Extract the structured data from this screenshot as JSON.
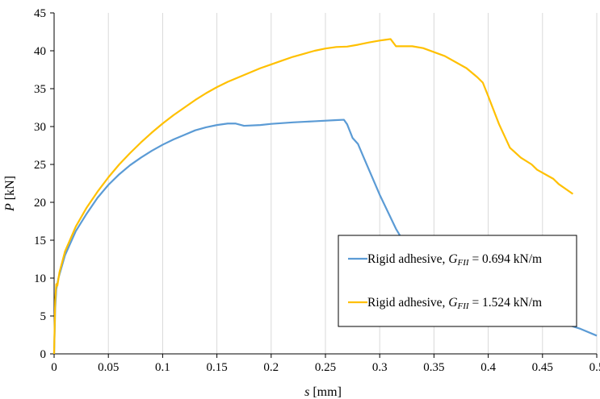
{
  "chart_data": {
    "type": "line",
    "xlabel_var": "s",
    "xlabel_unit": " [mm]",
    "ylabel_var": "P",
    "ylabel_unit": " [kN]",
    "xlim": [
      0,
      0.5
    ],
    "ylim": [
      0,
      45
    ],
    "x_ticks": [
      "0",
      "0.05",
      "0.1",
      "0.15",
      "0.2",
      "0.25",
      "0.3",
      "0.35",
      "0.4",
      "0.45",
      "0.5"
    ],
    "y_ticks": [
      "0",
      "5",
      "10",
      "15",
      "20",
      "25",
      "30",
      "35",
      "40",
      "45"
    ],
    "grid": "vertical",
    "legend_position": "right",
    "legend_prefix": "Rigid adhesive, ",
    "legend_symbol_base": "G",
    "legend_symbol_sub": "FII",
    "series": [
      {
        "legend_value": " = 0.694 kN/m",
        "color": "#5b9bd5",
        "points": [
          [
            0,
            0
          ],
          [
            0.001,
            6
          ],
          [
            0.002,
            8.5
          ],
          [
            0.004,
            10
          ],
          [
            0.01,
            13
          ],
          [
            0.02,
            16.2
          ],
          [
            0.03,
            18.5
          ],
          [
            0.04,
            20.6
          ],
          [
            0.05,
            22.3
          ],
          [
            0.06,
            23.7
          ],
          [
            0.07,
            24.9
          ],
          [
            0.08,
            25.9
          ],
          [
            0.09,
            26.8
          ],
          [
            0.1,
            27.6
          ],
          [
            0.11,
            28.3
          ],
          [
            0.12,
            28.9
          ],
          [
            0.13,
            29.5
          ],
          [
            0.14,
            29.9
          ],
          [
            0.15,
            30.2
          ],
          [
            0.16,
            30.4
          ],
          [
            0.167,
            30.4
          ],
          [
            0.175,
            30.1
          ],
          [
            0.19,
            30.2
          ],
          [
            0.2,
            30.35
          ],
          [
            0.22,
            30.55
          ],
          [
            0.24,
            30.7
          ],
          [
            0.26,
            30.85
          ],
          [
            0.267,
            30.9
          ],
          [
            0.27,
            30.3
          ],
          [
            0.275,
            28.5
          ],
          [
            0.28,
            27.7
          ],
          [
            0.285,
            26.0
          ],
          [
            0.3,
            21.0
          ],
          [
            0.315,
            16.5
          ],
          [
            0.32,
            15.3
          ],
          [
            0.33,
            12.5
          ],
          [
            0.36,
            10.0
          ],
          [
            0.4,
            7.0
          ],
          [
            0.42,
            5.5
          ],
          [
            0.45,
            4.6
          ],
          [
            0.47,
            4.0
          ],
          [
            0.485,
            3.3
          ],
          [
            0.5,
            2.4
          ]
        ]
      },
      {
        "legend_value": " = 1.524 kN/m",
        "color": "#ffc000",
        "points": [
          [
            0,
            0
          ],
          [
            0.001,
            7
          ],
          [
            0.002,
            9.2
          ],
          [
            0.003,
            9.0
          ],
          [
            0.005,
            10.8
          ],
          [
            0.01,
            13.5
          ],
          [
            0.02,
            16.8
          ],
          [
            0.03,
            19.3
          ],
          [
            0.04,
            21.4
          ],
          [
            0.05,
            23.3
          ],
          [
            0.06,
            25.0
          ],
          [
            0.07,
            26.5
          ],
          [
            0.08,
            27.9
          ],
          [
            0.09,
            29.2
          ],
          [
            0.1,
            30.4
          ],
          [
            0.11,
            31.5
          ],
          [
            0.12,
            32.5
          ],
          [
            0.13,
            33.5
          ],
          [
            0.14,
            34.4
          ],
          [
            0.15,
            35.2
          ],
          [
            0.16,
            35.9
          ],
          [
            0.17,
            36.5
          ],
          [
            0.18,
            37.1
          ],
          [
            0.19,
            37.7
          ],
          [
            0.2,
            38.2
          ],
          [
            0.21,
            38.7
          ],
          [
            0.22,
            39.2
          ],
          [
            0.23,
            39.6
          ],
          [
            0.24,
            40.0
          ],
          [
            0.25,
            40.3
          ],
          [
            0.26,
            40.5
          ],
          [
            0.27,
            40.55
          ],
          [
            0.28,
            40.8
          ],
          [
            0.29,
            41.1
          ],
          [
            0.3,
            41.35
          ],
          [
            0.305,
            41.45
          ],
          [
            0.31,
            41.55
          ],
          [
            0.315,
            40.6
          ],
          [
            0.33,
            40.6
          ],
          [
            0.34,
            40.35
          ],
          [
            0.36,
            39.3
          ],
          [
            0.38,
            37.7
          ],
          [
            0.39,
            36.5
          ],
          [
            0.395,
            35.8
          ],
          [
            0.4,
            34.0
          ],
          [
            0.41,
            30.3
          ],
          [
            0.42,
            27.2
          ],
          [
            0.43,
            25.9
          ],
          [
            0.44,
            25.0
          ],
          [
            0.445,
            24.3
          ],
          [
            0.46,
            23.1
          ],
          [
            0.465,
            22.4
          ],
          [
            0.478,
            21.1
          ]
        ]
      }
    ]
  }
}
